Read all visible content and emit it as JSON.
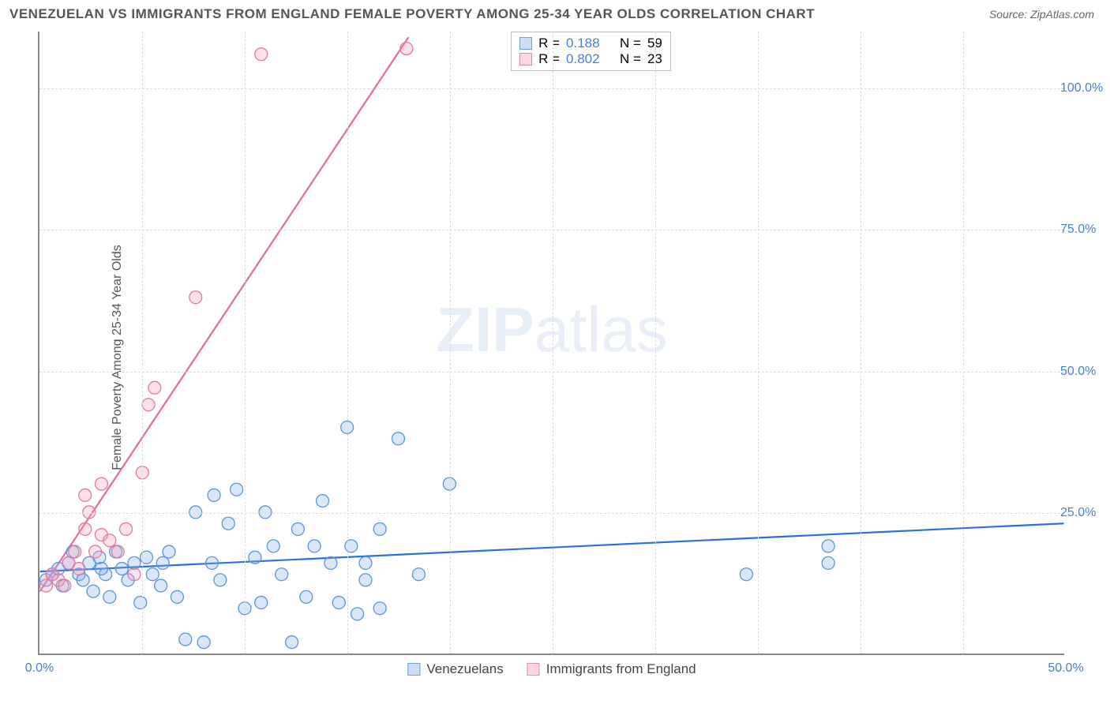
{
  "title": "VENEZUELAN VS IMMIGRANTS FROM ENGLAND FEMALE POVERTY AMONG 25-34 YEAR OLDS CORRELATION CHART",
  "source_label": "Source: ZipAtlas.com",
  "y_axis_label": "Female Poverty Among 25-34 Year Olds",
  "watermark_bold": "ZIP",
  "watermark_light": "atlas",
  "chart": {
    "type": "scatter",
    "xlim": [
      0,
      50
    ],
    "ylim": [
      0,
      110
    ],
    "x_ticks": [
      0,
      50
    ],
    "x_tick_labels": [
      "0.0%",
      "50.0%"
    ],
    "y_ticks": [
      25,
      50,
      75,
      100
    ],
    "y_tick_labels": [
      "25.0%",
      "50.0%",
      "75.0%",
      "100.0%"
    ],
    "x_minor_grid": [
      5,
      10,
      15,
      20,
      25,
      30,
      35,
      40,
      45
    ],
    "grid_color": "#dddddd",
    "axis_color": "#888888",
    "tick_label_color": "#4a80d4",
    "background_color": "#ffffff",
    "marker_radius": 8,
    "series": [
      {
        "name": "Venezuelans",
        "color_fill": "rgba(130,175,235,0.30)",
        "color_stroke": "#5a94dc",
        "points": [
          [
            0.3,
            13
          ],
          [
            0.6,
            14
          ],
          [
            0.9,
            15
          ],
          [
            1.1,
            12
          ],
          [
            1.4,
            16
          ],
          [
            1.6,
            18
          ],
          [
            1.9,
            14
          ],
          [
            2.1,
            13
          ],
          [
            2.4,
            16
          ],
          [
            2.6,
            11
          ],
          [
            2.9,
            17
          ],
          [
            3.2,
            14
          ],
          [
            3.4,
            10
          ],
          [
            3.7,
            18
          ],
          [
            4.0,
            15
          ],
          [
            4.3,
            13
          ],
          [
            4.6,
            16
          ],
          [
            4.9,
            9
          ],
          [
            5.2,
            17
          ],
          [
            5.5,
            14
          ],
          [
            5.9,
            12
          ],
          [
            6.3,
            18
          ],
          [
            6.7,
            10
          ],
          [
            7.1,
            2.5
          ],
          [
            7.6,
            25
          ],
          [
            8.0,
            2
          ],
          [
            8.4,
            16
          ],
          [
            8.5,
            28
          ],
          [
            8.8,
            13
          ],
          [
            9.2,
            23
          ],
          [
            9.6,
            29
          ],
          [
            10.0,
            8
          ],
          [
            10.5,
            17
          ],
          [
            10.8,
            9
          ],
          [
            11.0,
            25
          ],
          [
            11.4,
            19
          ],
          [
            11.8,
            14
          ],
          [
            12.3,
            2
          ],
          [
            12.6,
            22
          ],
          [
            13.0,
            10
          ],
          [
            13.4,
            19
          ],
          [
            13.8,
            27
          ],
          [
            14.2,
            16
          ],
          [
            14.6,
            9
          ],
          [
            15.0,
            40
          ],
          [
            15.2,
            19
          ],
          [
            15.5,
            7
          ],
          [
            15.9,
            13
          ],
          [
            15.9,
            16
          ],
          [
            16.6,
            22
          ],
          [
            16.6,
            8
          ],
          [
            17.5,
            38
          ],
          [
            18.5,
            14
          ],
          [
            20.0,
            30
          ],
          [
            34.5,
            14
          ],
          [
            38.5,
            16
          ],
          [
            38.5,
            19
          ],
          [
            6.0,
            16
          ],
          [
            3.0,
            15
          ]
        ],
        "trend": {
          "x1": 0,
          "y1": 14.5,
          "x2": 50,
          "y2": 23,
          "stroke": "#2a70d6",
          "width": 2.2
        },
        "R": "0.188",
        "N": "59"
      },
      {
        "name": "Immigrants from England",
        "color_fill": "rgba(245,155,185,0.30)",
        "color_stroke": "#e07aa0",
        "points": [
          [
            0.3,
            12
          ],
          [
            0.6,
            14
          ],
          [
            0.9,
            13
          ],
          [
            1.2,
            12
          ],
          [
            1.4,
            16
          ],
          [
            1.7,
            18
          ],
          [
            1.9,
            15
          ],
          [
            2.2,
            22
          ],
          [
            2.4,
            25
          ],
          [
            2.2,
            28
          ],
          [
            2.7,
            18
          ],
          [
            3.0,
            21
          ],
          [
            3.0,
            30
          ],
          [
            3.4,
            20
          ],
          [
            3.8,
            18
          ],
          [
            4.6,
            14
          ],
          [
            5.0,
            32
          ],
          [
            5.3,
            44
          ],
          [
            5.6,
            47
          ],
          [
            7.6,
            63
          ],
          [
            10.8,
            106
          ],
          [
            17.9,
            107
          ],
          [
            4.2,
            22
          ]
        ],
        "trend": {
          "x1": 0,
          "y1": 11,
          "x2": 18.0,
          "y2": 109,
          "stroke": "#e86a9a",
          "width": 2.2
        },
        "R": "0.802",
        "N": "23"
      }
    ],
    "stat_legend_labels": {
      "R": "R  =",
      "N": "N  ="
    },
    "series_legend": [
      {
        "label": "Venezuelans",
        "swatch": "blue"
      },
      {
        "label": "Immigrants from England",
        "swatch": "pink"
      }
    ]
  }
}
